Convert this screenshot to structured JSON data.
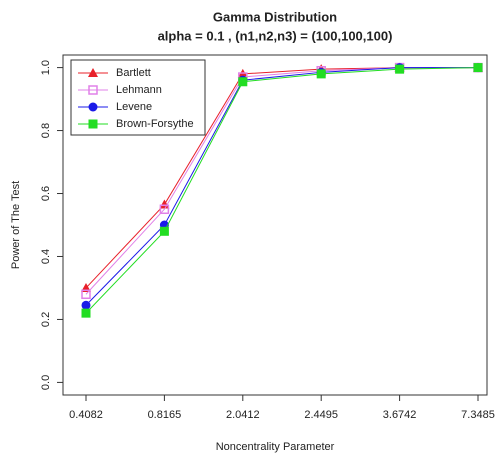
{
  "chart_data": {
    "type": "line",
    "title": "Gamma Distribution",
    "subtitle": "alpha = 0.1 , (n1,n2,n3) = (100,100,100)",
    "x_label": "Noncentrality Parameter",
    "y_label": "Power of The Test",
    "categories": [
      "0.4082",
      "0.8165",
      "2.0412",
      "2.4495",
      "3.6742",
      "7.3485"
    ],
    "series": [
      {
        "name": "Bartlett",
        "color": "#e8202a",
        "marker": "triangle",
        "values": [
          0.3,
          0.565,
          0.98,
          0.995,
          1.0,
          1.0
        ]
      },
      {
        "name": "Lehmann",
        "color": "#e080e8",
        "marker": "square-open",
        "values": [
          0.28,
          0.55,
          0.97,
          0.99,
          1.0,
          1.0
        ]
      },
      {
        "name": "Levene",
        "color": "#1a1ae8",
        "marker": "circle",
        "values": [
          0.245,
          0.5,
          0.96,
          0.985,
          1.0,
          1.0
        ]
      },
      {
        "name": "Brown-Forsythe",
        "color": "#22dd22",
        "marker": "square",
        "values": [
          0.22,
          0.48,
          0.955,
          0.98,
          0.995,
          1.0
        ]
      }
    ],
    "ylim": [
      -0.04,
      1.04
    ],
    "yticks": [
      {
        "value": 0,
        "label": "0.0"
      },
      0.2,
      0.4,
      0.6,
      0.8,
      {
        "value": 1,
        "label": "1.0"
      }
    ],
    "legend": "top-left"
  }
}
